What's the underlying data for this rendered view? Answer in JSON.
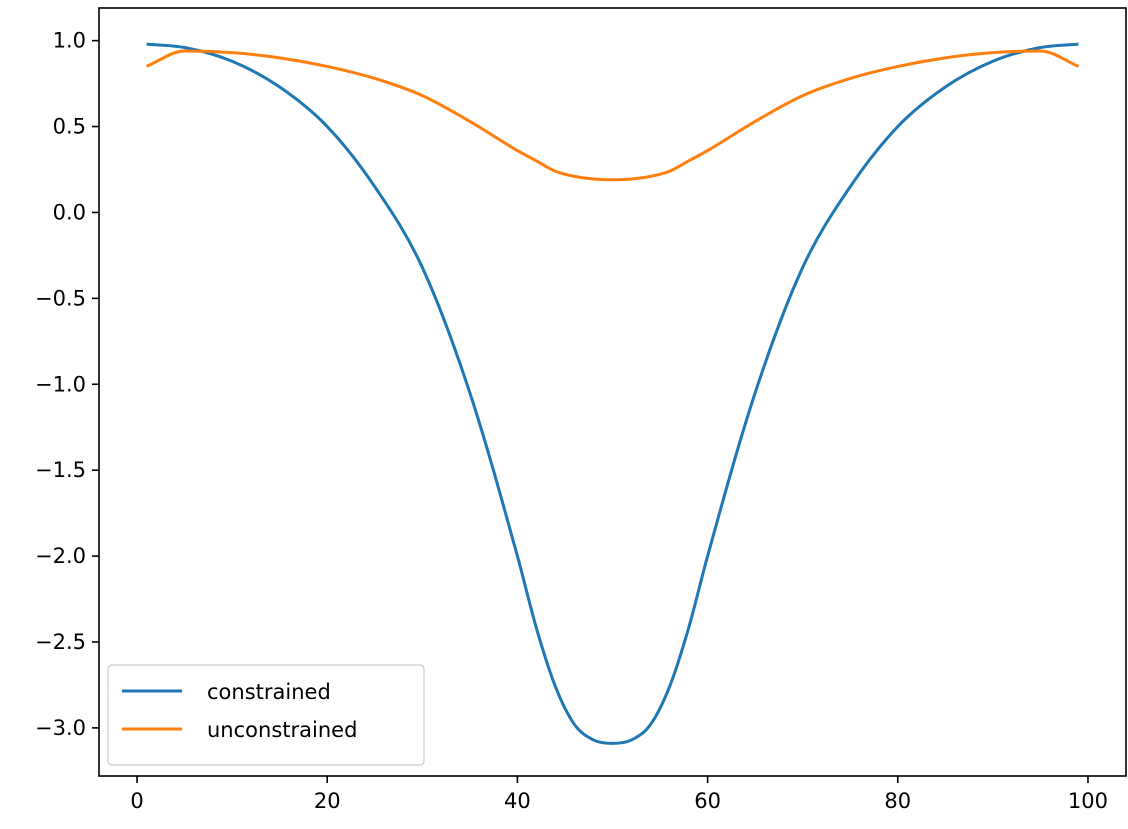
{
  "chart_data": {
    "type": "line",
    "title": "",
    "xlabel": "",
    "ylabel": "",
    "xlim": [
      -4,
      104
    ],
    "ylim": [
      -3.28,
      1.19
    ],
    "grid": false,
    "legend_position": "lower-left",
    "x_ticks": [
      {
        "value": 0,
        "label": "0"
      },
      {
        "value": 20,
        "label": "20"
      },
      {
        "value": 40,
        "label": "40"
      },
      {
        "value": 60,
        "label": "60"
      },
      {
        "value": 80,
        "label": "80"
      },
      {
        "value": 100,
        "label": "100"
      }
    ],
    "y_ticks": [
      {
        "value": 1.0,
        "label": "1.0"
      },
      {
        "value": 0.5,
        "label": "0.5"
      },
      {
        "value": 0.0,
        "label": "0.0"
      },
      {
        "value": -0.5,
        "label": "−0.5"
      },
      {
        "value": -1.0,
        "label": "−1.0"
      },
      {
        "value": -1.5,
        "label": "−1.5"
      },
      {
        "value": -2.0,
        "label": "−2.0"
      },
      {
        "value": -2.5,
        "label": "−2.5"
      },
      {
        "value": -3.0,
        "label": "−3.0"
      }
    ],
    "x": [
      1,
      5,
      10,
      15,
      20,
      25,
      30,
      35,
      40,
      42,
      44,
      46,
      48,
      50,
      52,
      54,
      56,
      58,
      60,
      65,
      70,
      75,
      80,
      85,
      90,
      95,
      99
    ],
    "series": [
      {
        "name": "constrained",
        "color": "#1f77b4",
        "values": [
          0.98,
          0.96,
          0.88,
          0.73,
          0.5,
          0.15,
          -0.32,
          -1.05,
          -2.0,
          -2.42,
          -2.76,
          -2.98,
          -3.07,
          -3.09,
          -3.07,
          -2.98,
          -2.76,
          -2.42,
          -2.0,
          -1.05,
          -0.32,
          0.15,
          0.5,
          0.73,
          0.88,
          0.96,
          0.98
        ]
      },
      {
        "name": "unconstrained",
        "color": "#ff7f0e",
        "values": [
          0.85,
          0.94,
          0.93,
          0.9,
          0.85,
          0.78,
          0.68,
          0.53,
          0.36,
          0.3,
          0.24,
          0.21,
          0.195,
          0.19,
          0.195,
          0.21,
          0.24,
          0.3,
          0.36,
          0.53,
          0.68,
          0.78,
          0.85,
          0.9,
          0.93,
          0.94,
          0.85
        ]
      }
    ]
  }
}
